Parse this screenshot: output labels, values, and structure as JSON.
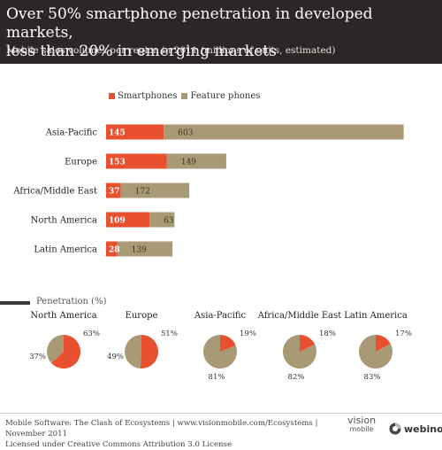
{
  "header": {
    "title_line1": "Over 50% smartphone penetration in developed markets,",
    "title_line2": "less than 20% in emerging markets",
    "subtitle": "Mobile sales volumes per region in 2011 (millions of units, estimated)"
  },
  "colors": {
    "smartphones": "#e8502f",
    "feature_phones": "#a99a76",
    "header_bg": "#2c2627"
  },
  "chart_data": [
    {
      "type": "bar",
      "orientation": "horizontal-stacked",
      "categories": [
        "Asia-Pacific",
        "Europe",
        "Africa/Middle East",
        "North America",
        "Latin America"
      ],
      "series": [
        {
          "name": "Smartphones",
          "values": [
            145,
            153,
            37,
            109,
            28
          ]
        },
        {
          "name": "Feature phones",
          "values": [
            603,
            149,
            172,
            63,
            139
          ]
        }
      ],
      "legend_position": "top-left"
    },
    {
      "type": "pie",
      "title": "Penetration (%)",
      "pies": [
        {
          "name": "North America",
          "smartphone_pct": 63,
          "feature_pct": 37
        },
        {
          "name": "Europe",
          "smartphone_pct": 51,
          "feature_pct": 49
        },
        {
          "name": "Asia-Pacific",
          "smartphone_pct": 19,
          "feature_pct": 81
        },
        {
          "name": "Africa/Middle East",
          "smartphone_pct": 18,
          "feature_pct": 82
        },
        {
          "name": "Latin America",
          "smartphone_pct": 17,
          "feature_pct": 83
        }
      ]
    }
  ],
  "footer": {
    "line1": "Mobile Software: The Clash of Ecosystems | www.visionmobile.com/Ecosystems | November 2011",
    "line2": "Licensed under Creative Commons Attribution 3.0 License"
  },
  "logos": {
    "visionmobile_top": "vision",
    "visionmobile_bottom": "mobile",
    "webinos": "webinos"
  }
}
